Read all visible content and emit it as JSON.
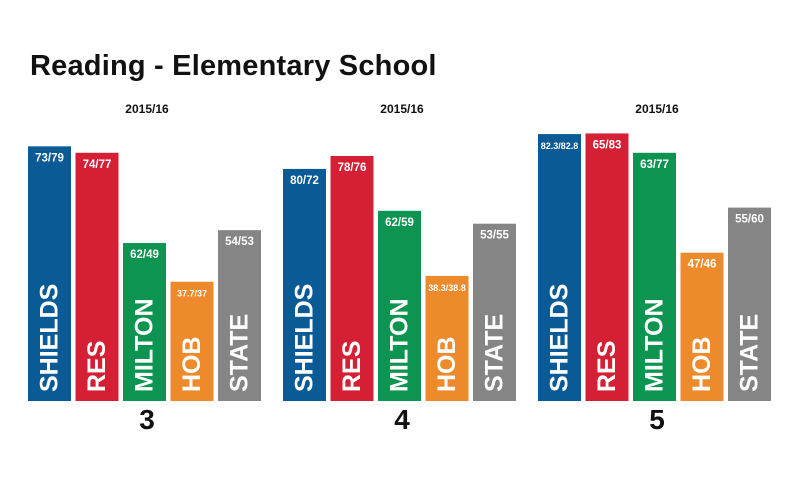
{
  "title": "Reading - Elementary School",
  "colors": {
    "SHIELDS": "#0a5a96",
    "RES": "#d41f35",
    "MILTON": "#0c9450",
    "HOB": "#ec8a2c",
    "STATE": "#858585"
  },
  "chart_data": [
    {
      "type": "bar",
      "title": "2015/16",
      "xlabel": "3",
      "categories": [
        "SHIELDS",
        "RES",
        "MILTON",
        "HOB",
        "STATE"
      ],
      "values": [
        79,
        77,
        49,
        37,
        53
      ],
      "data_labels": [
        "73/79",
        "74/77",
        "62/49",
        "37.7/37",
        "54/53"
      ],
      "ylim": [
        0,
        85
      ]
    },
    {
      "type": "bar",
      "title": "2015/16",
      "xlabel": "4",
      "categories": [
        "SHIELDS",
        "RES",
        "MILTON",
        "HOB",
        "STATE"
      ],
      "values": [
        72,
        76,
        59,
        38.8,
        55
      ],
      "data_labels": [
        "80/72",
        "78/76",
        "62/59",
        "38.3/38.8",
        "53/55"
      ],
      "ylim": [
        0,
        85
      ]
    },
    {
      "type": "bar",
      "title": "2015/16",
      "xlabel": "5",
      "categories": [
        "SHIELDS",
        "RES",
        "MILTON",
        "HOB",
        "STATE"
      ],
      "values": [
        82.8,
        83,
        77,
        46,
        60
      ],
      "data_labels": [
        "82.3/82.8",
        "65/83",
        "63/77",
        "47/46",
        "55/60"
      ],
      "ylim": [
        0,
        85
      ]
    }
  ]
}
